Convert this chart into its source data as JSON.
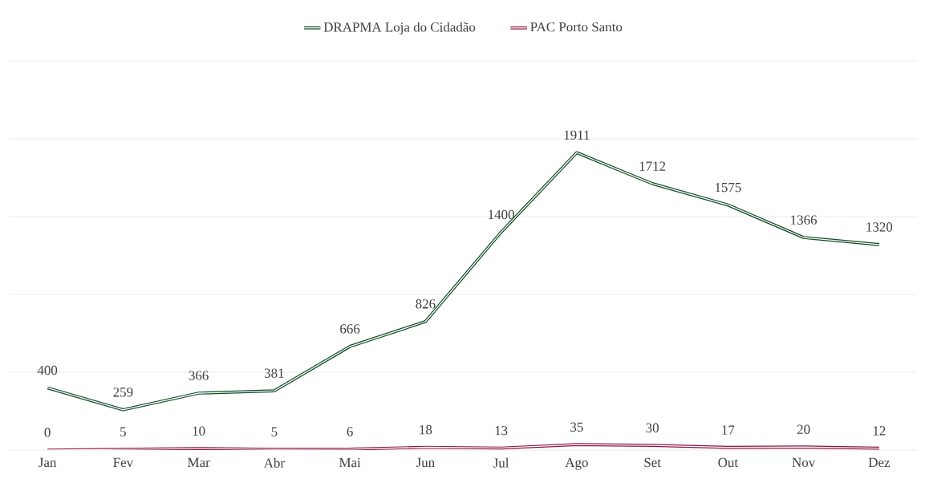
{
  "chart_data": {
    "type": "line",
    "categories": [
      "Jan",
      "Fev",
      "Mar",
      "Abr",
      "Mai",
      "Jun",
      "Jul",
      "Ago",
      "Set",
      "Out",
      "Nov",
      "Dez"
    ],
    "series": [
      {
        "name": "DRAPMA Loja do Cidadão",
        "color": "#0f4a24",
        "values": [
          400,
          259,
          366,
          381,
          666,
          826,
          1400,
          1911,
          1712,
          1575,
          1366,
          1320
        ]
      },
      {
        "name": "PAC Porto Santo",
        "color": "#8c1544",
        "values": [
          0,
          5,
          10,
          5,
          6,
          18,
          13,
          35,
          30,
          17,
          20,
          12
        ]
      }
    ],
    "ylim": [
      0,
      2500
    ],
    "yticks": [
      {
        "value": 0,
        "label": null
      },
      {
        "value": 500,
        "label": null
      },
      {
        "value": 1000,
        "label": null
      },
      {
        "value": 1500,
        "label": null
      },
      {
        "value": 2000,
        "label": null
      },
      {
        "value": 2500,
        "label": null
      }
    ],
    "tick_labels": "x",
    "grid": "y",
    "legend": "top",
    "marker": "none",
    "line_style": "solid",
    "data_labels": true
  }
}
